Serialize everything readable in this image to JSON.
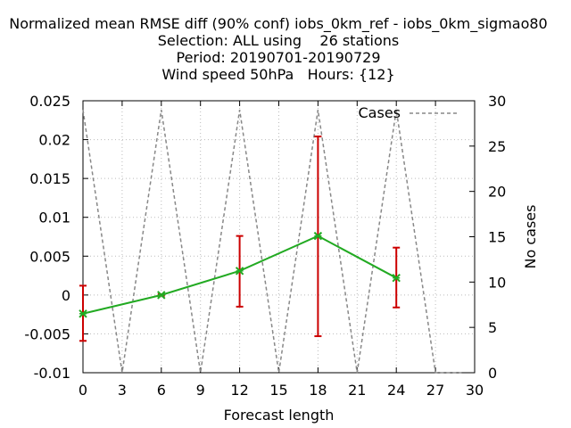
{
  "chart_data": {
    "type": "line",
    "title_lines": [
      "Normalized mean RMSE diff (90% conf) iobs_0km_ref - iobs_0km_sigmao80",
      "Selection: ALL using    26 stations",
      "Period: 20190701-20190729",
      "Wind speed 50hPa   Hours: {12}"
    ],
    "xlabel": "Forecast length",
    "ylabel": "",
    "y2label": "No cases",
    "xlim": [
      0,
      30
    ],
    "ylim": [
      -0.01,
      0.025
    ],
    "y2lim": [
      0,
      30
    ],
    "x_ticks": [
      "0",
      "3",
      "6",
      "9",
      "12",
      "15",
      "18",
      "21",
      "24",
      "27",
      "30"
    ],
    "y_ticks": [
      "-0.01",
      "-0.005",
      "0",
      "0.005",
      "0.01",
      "0.015",
      "0.02",
      "0.025"
    ],
    "y2_ticks": [
      "0",
      "5",
      "10",
      "15",
      "20",
      "25",
      "30"
    ],
    "grid": true,
    "legend_position": "top-right",
    "series": [
      {
        "name": "",
        "axis": "y",
        "color": "#22aa22",
        "x": [
          0,
          6,
          12,
          18,
          24
        ],
        "y": [
          -0.0024,
          0.0,
          0.0031,
          0.0076,
          0.0022
        ],
        "err_low": [
          -0.0059,
          -0.0001,
          -0.0015,
          -0.0053,
          -0.0016
        ],
        "err_high": [
          0.0012,
          0.0001,
          0.0076,
          0.0204,
          0.0061
        ],
        "err_color": "#cc0000"
      },
      {
        "name": "Cases",
        "axis": "y2",
        "color": "#888888",
        "dashed": true,
        "x": [
          0,
          3,
          6,
          9,
          12,
          15,
          18,
          21,
          24,
          27,
          28,
          29
        ],
        "y": [
          29,
          0,
          29,
          0,
          29,
          0,
          29,
          0,
          29,
          0,
          0,
          0
        ]
      }
    ]
  }
}
